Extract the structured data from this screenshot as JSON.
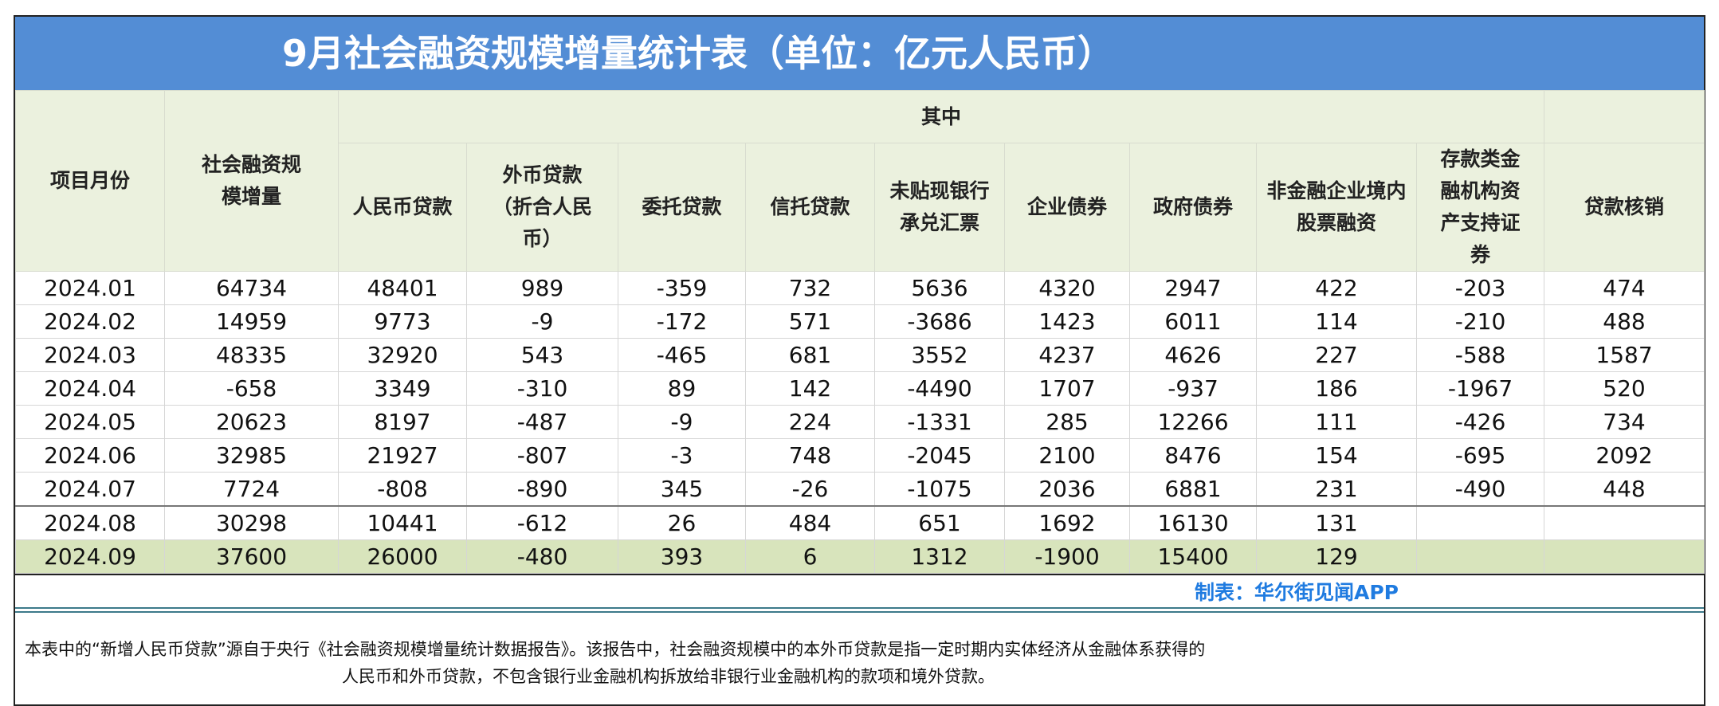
{
  "title": "9月社会融资规模增量统计表（单位：亿元人民币）",
  "headers": {
    "month": "项目月份",
    "total": "社会融资规模增量",
    "group": "其中",
    "cols": [
      "人民币贷款",
      "外币贷款（折合人民币）",
      "委托贷款",
      "信托贷款",
      "未贴现银行承兑汇票",
      "企业债券",
      "政府债券",
      "非金融企业境内股票融资",
      "存款类金融机构资产支持证券",
      "贷款核销"
    ]
  },
  "rows": [
    [
      "2024.01",
      "64734",
      "48401",
      "989",
      "-359",
      "732",
      "5636",
      "4320",
      "2947",
      "422",
      "-203",
      "474"
    ],
    [
      "2024.02",
      "14959",
      "9773",
      "-9",
      "-172",
      "571",
      "-3686",
      "1423",
      "6011",
      "114",
      "-210",
      "488"
    ],
    [
      "2024.03",
      "48335",
      "32920",
      "543",
      "-465",
      "681",
      "3552",
      "4237",
      "4626",
      "227",
      "-588",
      "1587"
    ],
    [
      "2024.04",
      "-658",
      "3349",
      "-310",
      "89",
      "142",
      "-4490",
      "1707",
      "-937",
      "186",
      "-1967",
      "520"
    ],
    [
      "2024.05",
      "20623",
      "8197",
      "-487",
      "-9",
      "224",
      "-1331",
      "285",
      "12266",
      "111",
      "-426",
      "734"
    ],
    [
      "2024.06",
      "32985",
      "21927",
      "-807",
      "-3",
      "748",
      "-2045",
      "2100",
      "8476",
      "154",
      "-695",
      "2092"
    ],
    [
      "2024.07",
      "7724",
      "-808",
      "-890",
      "345",
      "-26",
      "-1075",
      "2036",
      "6881",
      "231",
      "-490",
      "448"
    ],
    [
      "2024.08",
      "30298",
      "10441",
      "-612",
      "26",
      "484",
      "651",
      "1692",
      "16130",
      "131",
      "",
      ""
    ],
    [
      "2024.09",
      "37600",
      "26000",
      "-480",
      "393",
      "6",
      "1312",
      "-1900",
      "15400",
      "129",
      "",
      ""
    ]
  ],
  "credit": "制表：华尔街见闻APP",
  "note": {
    "line1": "本表中的“新增人民币贷款”源自于央行《社会融资规模增量统计数据报告》。该报告中，社会融资规模中的本外币贷款是指一定时期内实体经济从金融体系获得的",
    "line2": "人民币和外币贷款，不包含银行业金融机构拆放给非银行业金融机构的款项和境外贷款。"
  },
  "colors": {
    "title_bg": "#538dd5",
    "header_bg": "#ebf1de",
    "highlight_row": "#d8e4bc",
    "credit": "#1f7be0"
  }
}
